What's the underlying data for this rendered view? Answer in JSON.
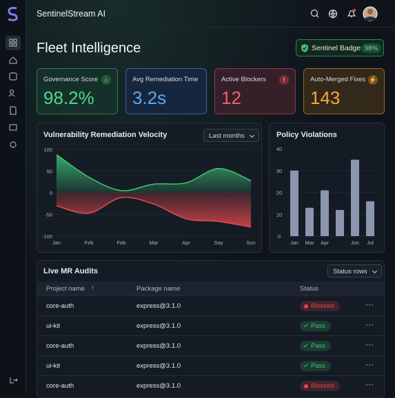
{
  "header": {
    "app_name": "SentinelStream AI"
  },
  "page": {
    "title": "Fleet Intelligence",
    "badge": {
      "label": "Sentinel Badge",
      "value": "98%"
    }
  },
  "kpis": [
    {
      "label": "Governance Score",
      "value": "98.2%"
    },
    {
      "label": "Avg Remediation Time",
      "value": "3.2s"
    },
    {
      "label": "Active Blockers",
      "value": "12"
    },
    {
      "label": "Auto-Merged Fixes",
      "value": "143"
    }
  ],
  "velocity_chart": {
    "type": "area",
    "title": "Vulnerability Remediation Velocity",
    "filter": "Last months",
    "categories": [
      "Jan",
      "Feb",
      "Feb",
      "Mar",
      "Apr",
      "Say",
      "Sun"
    ],
    "series": [
      {
        "color": "#3fbf75",
        "values": [
          88,
          36,
          5,
          20,
          23,
          56,
          28
        ]
      },
      {
        "color": "#e0474f",
        "values": [
          -30,
          -47,
          -11,
          -26,
          -60,
          -66,
          -79
        ]
      }
    ],
    "ylim": [
      -100,
      100
    ],
    "yticks": [
      -100,
      -50,
      0,
      50,
      100
    ]
  },
  "violations_chart": {
    "type": "bar",
    "title": "Policy Violations",
    "categories": [
      "Jan",
      "Mar",
      "Apr",
      null,
      "Jun",
      "Jul"
    ],
    "values": [
      30,
      13,
      21,
      12,
      35,
      16
    ],
    "color": "#8a96ad",
    "ylim": [
      0,
      40
    ],
    "yticks": [
      0,
      10,
      20,
      30,
      40
    ]
  },
  "table": {
    "title": "Live MR Audits",
    "filter": "Status rows",
    "columns": [
      "Project name",
      "Package name",
      "Status"
    ],
    "rows": [
      {
        "project": "core-auth",
        "package": "express@3.1.0",
        "status": "Blocked",
        "status_color": "#e0474f",
        "status_icon": "dot"
      },
      {
        "project": "ui-kit",
        "package": "express@3.1.0",
        "status": "Pass",
        "status_color": "#3fbf75",
        "status_icon": "check"
      },
      {
        "project": "core-auth",
        "package": "express@3.1.0",
        "status": "Pass",
        "status_color": "#3fbf75",
        "status_icon": "check"
      },
      {
        "project": "ui-kit",
        "package": "express@3.1.0",
        "status": "Pass",
        "status_color": "#3fbf75",
        "status_icon": "check"
      },
      {
        "project": "core-auth",
        "package": "express@3.1.0",
        "status": "Blocked",
        "status_color": "#e0474f",
        "status_icon": "dot"
      }
    ]
  }
}
